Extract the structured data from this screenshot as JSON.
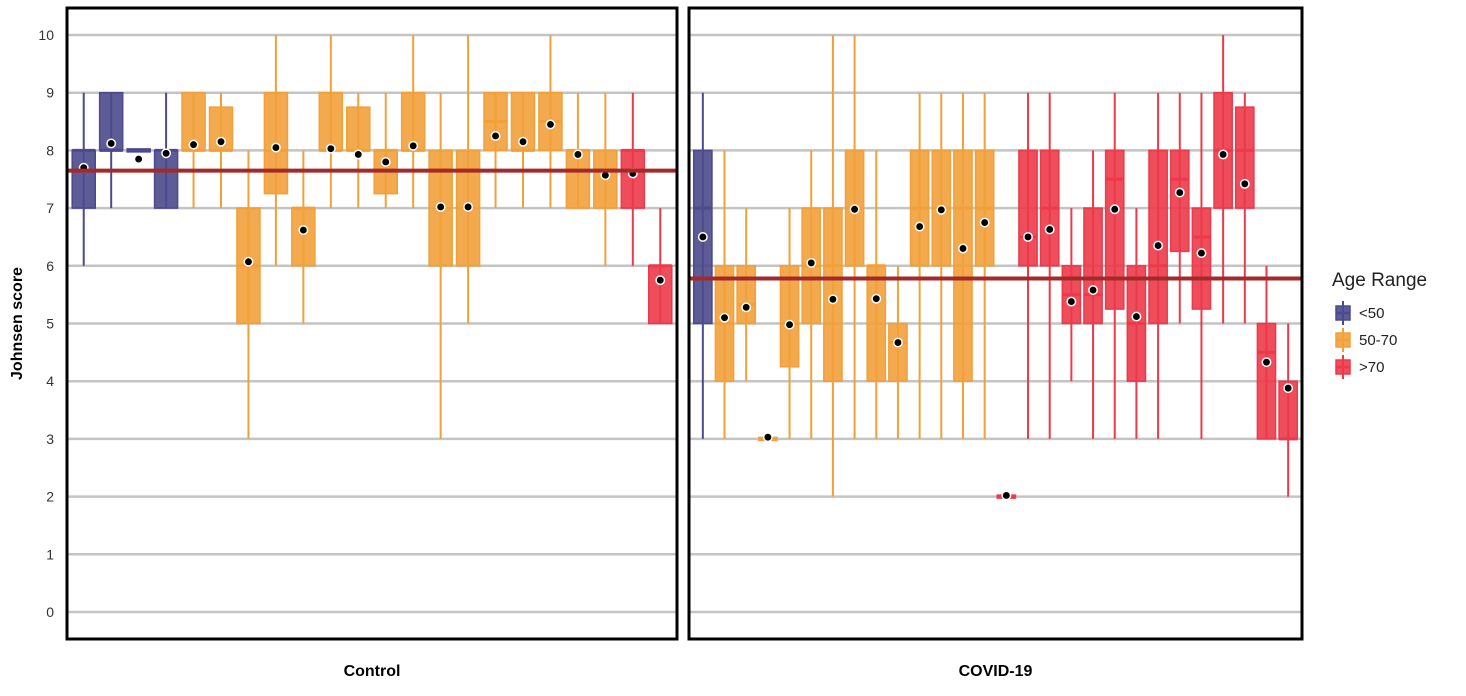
{
  "chart_data": {
    "type": "boxplot",
    "ylabel": "Johnsen score",
    "ylim": [
      0,
      10
    ],
    "y_ticks": [
      "0",
      "1",
      "2",
      "3",
      "4",
      "5",
      "6",
      "7",
      "8",
      "9",
      "10"
    ],
    "grid": "horizontal",
    "legend": {
      "title": "Age Range",
      "position": "right",
      "items": [
        {
          "label": "<50",
          "color": "#4b4a8c"
        },
        {
          "label": "50-70",
          "color": "#f2a03a"
        },
        {
          "label": ">70",
          "color": "#ec3a4a"
        }
      ]
    },
    "colors": {
      "<50": "#4b4a8c",
      "50-70": "#f2a03a",
      ">70": "#ec3a4a",
      "mean_line": "#a42a2a"
    },
    "panels": [
      {
        "label": "Control",
        "group_mean": 7.65,
        "boxes": [
          {
            "age": "<50",
            "min": 6,
            "q1": 7,
            "median": 8,
            "q3": 8,
            "max": 9,
            "mean": 7.7
          },
          {
            "age": "<50",
            "min": 7,
            "q1": 8,
            "median": 8,
            "q3": 9,
            "max": 9,
            "mean": 8.12
          },
          {
            "age": "<50",
            "min": 8,
            "q1": 8,
            "median": 8,
            "q3": 8,
            "max": 8,
            "mean": 7.85
          },
          {
            "age": "<50",
            "min": 7,
            "q1": 7,
            "median": 8,
            "q3": 8,
            "max": 9,
            "mean": 7.95
          },
          {
            "age": "50-70",
            "min": 7,
            "q1": 8,
            "median": 8,
            "q3": 9,
            "max": 9,
            "mean": 8.1
          },
          {
            "age": "50-70",
            "min": 7,
            "q1": 8,
            "median": 8,
            "q3": 8.75,
            "max": 9,
            "mean": 8.15
          },
          {
            "age": "50-70",
            "min": 3,
            "q1": 5,
            "median": 6,
            "q3": 7,
            "max": 8,
            "mean": 6.07
          },
          {
            "age": "50-70",
            "min": 6,
            "q1": 7.25,
            "median": 8,
            "q3": 9,
            "max": 10,
            "mean": 8.05
          },
          {
            "age": "50-70",
            "min": 5,
            "q1": 6,
            "median": 7,
            "q3": 7,
            "max": 8,
            "mean": 6.62
          },
          {
            "age": "50-70",
            "min": 7,
            "q1": 8,
            "median": 8,
            "q3": 9,
            "max": 10,
            "mean": 8.03
          },
          {
            "age": "50-70",
            "min": 7,
            "q1": 8,
            "median": 8,
            "q3": 8.75,
            "max": 9,
            "mean": 7.93
          },
          {
            "age": "50-70",
            "min": 7,
            "q1": 7.25,
            "median": 8,
            "q3": 8,
            "max": 9,
            "mean": 7.8
          },
          {
            "age": "50-70",
            "min": 7,
            "q1": 8,
            "median": 8,
            "q3": 9,
            "max": 10,
            "mean": 8.08
          },
          {
            "age": "50-70",
            "min": 3,
            "q1": 6,
            "median": 7.67,
            "q3": 8,
            "max": 9,
            "mean": 7.02
          },
          {
            "age": "50-70",
            "min": 5,
            "q1": 6,
            "median": 7.67,
            "q3": 8,
            "max": 10,
            "mean": 7.02
          },
          {
            "age": "50-70",
            "min": 7,
            "q1": 8,
            "median": 8.5,
            "q3": 9,
            "max": 9,
            "mean": 8.25
          },
          {
            "age": "50-70",
            "min": 7,
            "q1": 8,
            "median": 8,
            "q3": 9,
            "max": 9,
            "mean": 8.15
          },
          {
            "age": "50-70",
            "min": 7,
            "q1": 8,
            "median": 8.5,
            "q3": 9,
            "max": 10,
            "mean": 8.45
          },
          {
            "age": "50-70",
            "min": 7,
            "q1": 7,
            "median": 8,
            "q3": 8,
            "max": 9,
            "mean": 7.93
          },
          {
            "age": "50-70",
            "min": 6,
            "q1": 7,
            "median": 7.67,
            "q3": 8,
            "max": 9,
            "mean": 7.57
          },
          {
            "age": ">70",
            "min": 6,
            "q1": 7,
            "median": 8,
            "q3": 8,
            "max": 9,
            "mean": 7.6
          },
          {
            "age": ">70",
            "min": 5,
            "q1": 5,
            "median": 6,
            "q3": 6,
            "max": 7,
            "mean": 5.75
          }
        ]
      },
      {
        "label": "COVID-19",
        "group_mean": 5.78,
        "boxes": [
          {
            "age": "<50",
            "min": 3,
            "q1": 5,
            "median": 7,
            "q3": 8,
            "max": 9,
            "mean": 6.5
          },
          {
            "age": "50-70",
            "min": 3,
            "q1": 4,
            "median": 5,
            "q3": 6,
            "max": 8,
            "mean": 5.1
          },
          {
            "age": "50-70",
            "min": 4,
            "q1": 5,
            "median": 5.33,
            "q3": 6,
            "max": 7,
            "mean": 5.28
          },
          {
            "age": "50-70",
            "min": 3,
            "q1": 3,
            "median": 3,
            "q3": 3,
            "max": 3,
            "mean": 3.03
          },
          {
            "age": "50-70",
            "min": 3,
            "q1": 4.25,
            "median": 5,
            "q3": 6,
            "max": 7,
            "mean": 4.98
          },
          {
            "age": "50-70",
            "min": 3,
            "q1": 5,
            "median": 6,
            "q3": 7,
            "max": 8,
            "mean": 6.05
          },
          {
            "age": "50-70",
            "min": 2,
            "q1": 4,
            "median": 6,
            "q3": 7,
            "max": 10,
            "mean": 5.42
          },
          {
            "age": "50-70",
            "min": 3,
            "q1": 6,
            "median": 7,
            "q3": 8,
            "max": 10,
            "mean": 6.98
          },
          {
            "age": "50-70",
            "min": 3,
            "q1": 4,
            "median": 6,
            "q3": 6,
            "max": 8,
            "mean": 5.43
          },
          {
            "age": "50-70",
            "min": 3,
            "q1": 4,
            "median": 4.67,
            "q3": 5,
            "max": 6,
            "mean": 4.67
          },
          {
            "age": "50-70",
            "min": 3,
            "q1": 6,
            "median": 7,
            "q3": 8,
            "max": 9,
            "mean": 6.68
          },
          {
            "age": "50-70",
            "min": 3,
            "q1": 6,
            "median": 7,
            "q3": 8,
            "max": 9,
            "mean": 6.97
          },
          {
            "age": "50-70",
            "min": 3,
            "q1": 4,
            "median": 7,
            "q3": 8,
            "max": 9,
            "mean": 6.3
          },
          {
            "age": "50-70",
            "min": 3,
            "q1": 6,
            "median": 7,
            "q3": 8,
            "max": 9,
            "mean": 6.75
          },
          {
            "age": ">70",
            "min": 2,
            "q1": 2,
            "median": 2,
            "q3": 2,
            "max": 2,
            "mean": 2.02
          },
          {
            "age": ">70",
            "min": 3,
            "q1": 6,
            "median": 6.5,
            "q3": 8,
            "max": 9,
            "mean": 6.5
          },
          {
            "age": ">70",
            "min": 3,
            "q1": 6,
            "median": 7,
            "q3": 8,
            "max": 9,
            "mean": 6.63
          },
          {
            "age": ">70",
            "min": 4,
            "q1": 5,
            "median": 5.5,
            "q3": 6,
            "max": 7,
            "mean": 5.38
          },
          {
            "age": ">70",
            "min": 3,
            "q1": 5,
            "median": 5.5,
            "q3": 7,
            "max": 8,
            "mean": 5.58
          },
          {
            "age": ">70",
            "min": 3,
            "q1": 5.25,
            "median": 7.5,
            "q3": 8,
            "max": 9,
            "mean": 6.98
          },
          {
            "age": ">70",
            "min": 3,
            "q1": 4,
            "median": 5,
            "q3": 6,
            "max": 7,
            "mean": 5.12
          },
          {
            "age": ">70",
            "min": 3,
            "q1": 5,
            "median": 6,
            "q3": 8,
            "max": 9,
            "mean": 6.35
          },
          {
            "age": ">70",
            "min": 5,
            "q1": 6.25,
            "median": 7.5,
            "q3": 8,
            "max": 9,
            "mean": 7.27
          },
          {
            "age": ">70",
            "min": 3,
            "q1": 5.25,
            "median": 6.5,
            "q3": 7,
            "max": 9,
            "mean": 6.22
          },
          {
            "age": ">70",
            "min": 5,
            "q1": 7,
            "median": 8,
            "q3": 9,
            "max": 10,
            "mean": 7.93
          },
          {
            "age": ">70",
            "min": 5,
            "q1": 7,
            "median": 8,
            "q3": 8.75,
            "max": 9,
            "mean": 7.42
          },
          {
            "age": ">70",
            "min": 3,
            "q1": 3,
            "median": 4.5,
            "q3": 5,
            "max": 6,
            "mean": 4.33
          },
          {
            "age": ">70",
            "min": 2,
            "q1": 3,
            "median": 3,
            "q3": 4,
            "max": 5,
            "mean": 3.88
          }
        ]
      }
    ]
  }
}
